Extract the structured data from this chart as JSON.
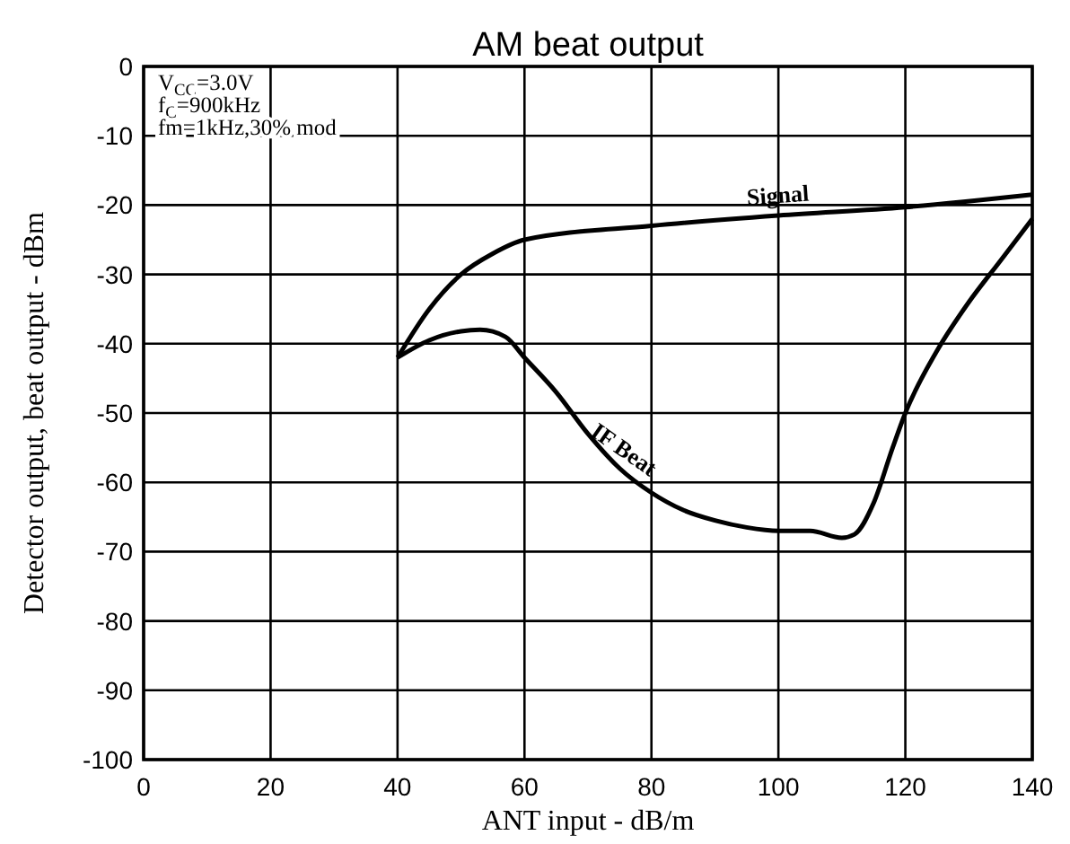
{
  "chart_data": {
    "type": "line",
    "title": "AM beat output",
    "xlabel": "ANT input - dB/m",
    "ylabel": "Detector output, beat output - dBm",
    "xlim": [
      0,
      140
    ],
    "xticks": [
      0,
      20,
      40,
      60,
      80,
      100,
      120,
      140
    ],
    "ylim": [
      -100,
      0
    ],
    "yticks": [
      0,
      -10,
      -20,
      -30,
      -40,
      -50,
      -60,
      -70,
      -80,
      -90,
      -100
    ],
    "grid": true,
    "annotations": [
      "V$_{CC}$=3.0V",
      "f$_{C}$=900kHz",
      "fm=1kHz,30% mod"
    ],
    "series": [
      {
        "name": "Signal",
        "color": "#000000",
        "x": [
          40,
          45,
          50,
          55,
          60,
          80,
          100,
          120,
          140
        ],
        "values": [
          -42,
          -35,
          -30,
          -27,
          -25,
          -23,
          -21.5,
          -20.3,
          -18.5
        ]
      },
      {
        "name": "IF Beat",
        "color": "#000000",
        "x": [
          40,
          45,
          50,
          53,
          57,
          60,
          65,
          70,
          75,
          80,
          85,
          90,
          95,
          100,
          105,
          110,
          112,
          115,
          118,
          120,
          125,
          130,
          135,
          140
        ],
        "values": [
          -42,
          -39.5,
          -38.2,
          -38,
          -39,
          -42,
          -47,
          -53,
          -58,
          -61.5,
          -64,
          -65.5,
          -66.5,
          -67,
          -67,
          -68,
          -67.5,
          -63,
          -55,
          -50,
          -41,
          -34,
          -28,
          -22
        ]
      }
    ]
  }
}
